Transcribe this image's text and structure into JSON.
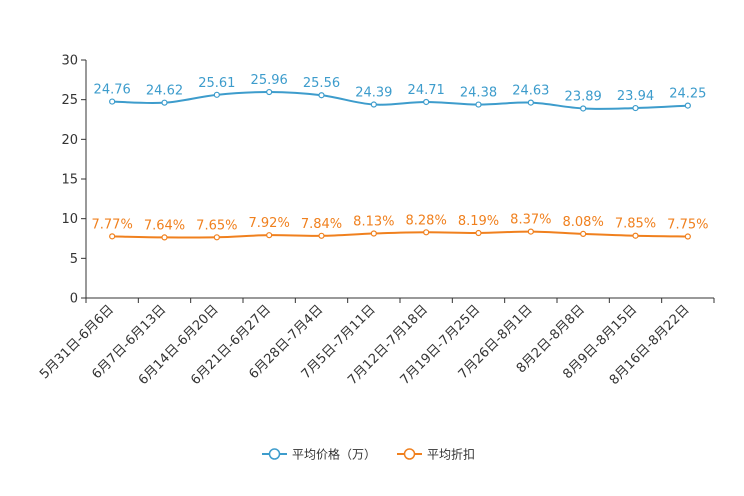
{
  "chart_data": {
    "type": "line",
    "title": "",
    "xlabel": "",
    "ylabel": "",
    "ylim": [
      0,
      30
    ],
    "yticks": [
      0,
      5,
      10,
      15,
      20,
      25,
      30
    ],
    "grid": false,
    "legend_position": "bottom-center",
    "categories": [
      "5月31日-6月6日",
      "6月7日-6月13日",
      "6月14日-6月20日",
      "6月21日-6月27日",
      "6月28日-7月4日",
      "7月5日-7月11日",
      "7月12日-7月18日",
      "7月19日-7月25日",
      "7月26日-8月1日",
      "8月2日-8月8日",
      "8月9日-8月15日",
      "8月16日-8月22日"
    ],
    "series": [
      {
        "name": "平均价格（万）",
        "color": "#3d9ccc",
        "values": [
          24.76,
          24.62,
          25.61,
          25.96,
          25.56,
          24.39,
          24.71,
          24.38,
          24.63,
          23.89,
          23.94,
          24.25
        ],
        "labels": [
          "24.76",
          "24.62",
          "25.61",
          "25.96",
          "25.56",
          "24.39",
          "24.71",
          "24.38",
          "24.63",
          "23.89",
          "23.94",
          "24.25"
        ]
      },
      {
        "name": "平均折扣",
        "color": "#f0801e",
        "values": [
          7.77,
          7.64,
          7.65,
          7.92,
          7.84,
          8.13,
          8.28,
          8.19,
          8.37,
          8.08,
          7.85,
          7.75
        ],
        "labels": [
          "7.77%",
          "7.64%",
          "7.65%",
          "7.92%",
          "7.84%",
          "8.13%",
          "8.28%",
          "8.19%",
          "8.37%",
          "8.08%",
          "7.85%",
          "7.75%"
        ]
      }
    ]
  }
}
